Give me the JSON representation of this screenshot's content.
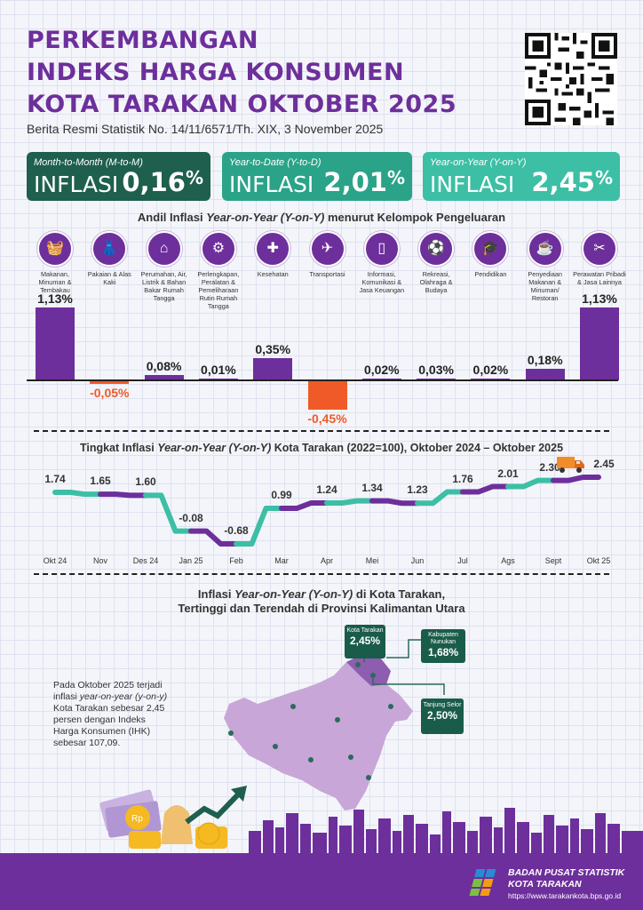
{
  "title": {
    "line1": "PERKEMBANGAN",
    "line2": "INDEKS HARGA KONSUMEN",
    "line3": "KOTA TARAKAN OKTOBER 2025",
    "subtitle": "Berita Resmi Statistik No. 14/11/6571/Th. XIX, 3 November 2025"
  },
  "boxes": [
    {
      "label": "Month-to-Month (M-to-M)",
      "word": "INFLASI",
      "value": "0,16",
      "unit": "%",
      "color": "#1e5f4d"
    },
    {
      "label": "Year-to-Date (Y-to-D)",
      "word": "INFLASI",
      "value": "2,01",
      "unit": "%",
      "color": "#2aa389"
    },
    {
      "label": "Year-on-Year (Y-on-Y)",
      "word": "INFLASI",
      "value": "2,45",
      "unit": "%",
      "color": "#3cbfa5"
    }
  ],
  "andil": {
    "title_a": "Andil Inflasi ",
    "title_b": "Year-on-Year (Y-on-Y)",
    "title_c": " menurut Kelompok Pengeluaran",
    "categories": [
      {
        "name": "Makanan, Minuman & Tembakau",
        "icon": "food-basket-icon"
      },
      {
        "name": "Pakaian & Alas Kaki",
        "icon": "dress-icon"
      },
      {
        "name": "Perumahan, Air, Listrik & Bahan Bakar Rumah Tangga",
        "icon": "house-icon"
      },
      {
        "name": "Perlengkapan, Peralatan & Pemeliharaan Rutin Rumah Tangga",
        "icon": "appliance-icon"
      },
      {
        "name": "Kesehatan",
        "icon": "medical-kit-icon"
      },
      {
        "name": "Transportasi",
        "icon": "airplane-icon"
      },
      {
        "name": "Informasi, Komunikasi & Jasa Keuangan",
        "icon": "phone-icon"
      },
      {
        "name": "Rekreasi, Olahraga & Budaya",
        "icon": "soccer-player-icon"
      },
      {
        "name": "Pendidikan",
        "icon": "graduation-cap-icon"
      },
      {
        "name": "Penyediaan Makanan & Minuman/ Restoran",
        "icon": "food-cart-icon"
      },
      {
        "name": "Perawatan Pribadi & Jasa Lainnya",
        "icon": "scissors-comb-icon"
      }
    ],
    "value_labels": [
      "1,13%",
      "-0,05%",
      "0,08%",
      "0,01%",
      "0,35%",
      "-0,45%",
      "0,02%",
      "0,03%",
      "0,02%",
      "0,18%",
      "1,13%"
    ],
    "pos_color": "#6d2f9b",
    "neg_color": "#f05a28"
  },
  "line": {
    "title_a": "Tingkat Inflasi ",
    "title_b": "Year-on-Year (Y-on-Y)",
    "title_c": " Kota Tarakan (2022=100), Oktober 2024 – Oktober 2025",
    "value_labels": [
      "1.74",
      "1.65",
      "1.60",
      "-0.08",
      "-0.68",
      "0.99",
      "1.24",
      "1.34",
      "1.23",
      "1.76",
      "2.01",
      "2.30",
      "2.45"
    ]
  },
  "map": {
    "title1_a": "Inflasi ",
    "title1_b": "Year-on-Year (Y-on-Y)",
    "title1_c": " di Kota Tarakan,",
    "title2": "Tertinggi dan Terendah di Provinsi Kalimantan Utara",
    "callouts": [
      {
        "name": "Kota Tarakan",
        "value": "2,45%"
      },
      {
        "name": "Kabupaten Nunukan",
        "value": "1,68%"
      },
      {
        "name": "Tanjung Selor",
        "value": "2,50%"
      }
    ],
    "para_a": "Pada Oktober 2025 terjadi inflasi ",
    "para_b": "year-on-year (y-on-y)",
    "para_c": " Kota Tarakan sebesar 2,45 persen dengan Indeks Harga Konsumen (IHK) sebesar 107,09."
  },
  "footer": {
    "org1": "BADAN PUSAT STATISTIK",
    "org2": "KOTA TARAKAN",
    "url": "https://www.tarakankota.bps.go.id"
  },
  "chart_data": [
    {
      "type": "bar",
      "title": "Andil Inflasi Year-on-Year (Y-on-Y) menurut Kelompok Pengeluaran",
      "categories": [
        "Makanan, Minuman & Tembakau",
        "Pakaian & Alas Kaki",
        "Perumahan, Air, Listrik & Bahan Bakar Rumah Tangga",
        "Perlengkapan, Peralatan & Pemeliharaan Rutin Rumah Tangga",
        "Kesehatan",
        "Transportasi",
        "Informasi, Komunikasi & Jasa Keuangan",
        "Rekreasi, Olahraga & Budaya",
        "Pendidikan",
        "Penyediaan Makanan & Minuman/ Restoran",
        "Perawatan Pribadi & Jasa Lainnya"
      ],
      "values": [
        1.13,
        -0.05,
        0.08,
        0.01,
        0.35,
        -0.45,
        0.02,
        0.03,
        0.02,
        0.18,
        1.13
      ],
      "unit": "%",
      "ylim": [
        -0.45,
        1.13
      ]
    },
    {
      "type": "line",
      "title": "Tingkat Inflasi Year-on-Year (Y-on-Y) Kota Tarakan (2022=100), Oktober 2024 – Oktober 2025",
      "x": [
        "Okt 24",
        "Nov",
        "Des 24",
        "Jan 25",
        "Feb",
        "Mar",
        "Apr",
        "Mei",
        "Jun",
        "Jul",
        "Ags",
        "Sept",
        "Okt 25"
      ],
      "values": [
        1.74,
        1.65,
        1.6,
        -0.08,
        -0.68,
        0.99,
        1.24,
        1.34,
        1.23,
        1.76,
        2.01,
        2.3,
        2.45
      ],
      "grid": false,
      "colors": [
        "#3cbfa5",
        "#6d2f9b"
      ]
    }
  ]
}
